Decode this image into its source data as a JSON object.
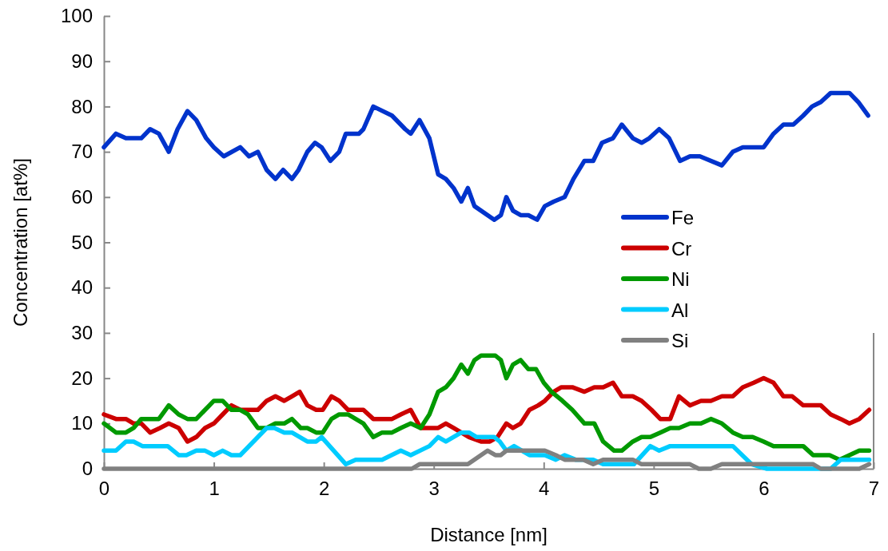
{
  "chart_data": {
    "type": "line",
    "xlabel": "Distance [nm]",
    "ylabel": "Concentration [at%]",
    "xlim": [
      0,
      7
    ],
    "xticks": [
      0,
      1,
      2,
      3,
      4,
      5,
      6,
      7
    ],
    "ylim": [
      0,
      100
    ],
    "yticks": [
      0,
      10,
      20,
      30,
      40,
      50,
      60,
      70,
      80,
      90,
      100
    ],
    "grid": false,
    "legend": "right",
    "marker": "none",
    "line_style": "solid",
    "series": [
      {
        "name": "Fe",
        "color": "#0033cc",
        "x": [
          0,
          0.11,
          0.2,
          0.34,
          0.42,
          0.5,
          0.59,
          0.67,
          0.76,
          0.84,
          0.93,
          1.0,
          1.09,
          1.24,
          1.32,
          1.4,
          1.48,
          1.56,
          1.63,
          1.71,
          1.77,
          1.85,
          1.92,
          1.98,
          2.06,
          2.14,
          2.2,
          2.32,
          2.36,
          2.45,
          2.62,
          2.74,
          2.79,
          2.87,
          2.96,
          3.04,
          3.11,
          3.18,
          3.25,
          3.31,
          3.37,
          3.55,
          3.61,
          3.66,
          3.72,
          3.79,
          3.86,
          3.94,
          4.01,
          4.09,
          4.19,
          4.27,
          4.37,
          4.45,
          4.53,
          4.63,
          4.71,
          4.81,
          4.89,
          4.96,
          5.05,
          5.14,
          5.24,
          5.33,
          5.42,
          5.62,
          5.72,
          5.81,
          6.0,
          6.09,
          6.18,
          6.27,
          6.36,
          6.44,
          6.52,
          6.61,
          6.78,
          6.86,
          6.95
        ],
        "values": [
          71,
          74,
          73,
          73,
          75,
          74,
          70,
          75,
          79,
          77,
          73,
          71,
          69,
          71,
          69,
          70,
          66,
          64,
          66,
          64,
          66,
          70,
          72,
          71,
          68,
          70,
          74,
          74,
          75,
          80,
          78,
          75,
          74,
          77,
          73,
          65,
          64,
          62,
          59,
          62,
          58,
          55,
          56,
          60,
          57,
          56,
          56,
          55,
          58,
          59,
          60,
          64,
          68,
          68,
          72,
          73,
          76,
          73,
          72,
          73,
          75,
          73,
          68,
          69,
          69,
          67,
          70,
          71,
          71,
          74,
          76,
          76,
          78,
          80,
          81,
          83,
          83,
          81,
          78
        ]
      },
      {
        "name": "Cr",
        "color": "#cc0000",
        "x": [
          0,
          0.11,
          0.2,
          0.27,
          0.34,
          0.42,
          0.51,
          0.59,
          0.68,
          0.76,
          0.84,
          0.92,
          1.0,
          1.08,
          1.16,
          1.24,
          1.4,
          1.48,
          1.56,
          1.64,
          1.71,
          1.78,
          1.85,
          1.93,
          1.99,
          2.07,
          2.14,
          2.22,
          2.36,
          2.45,
          2.62,
          2.7,
          2.79,
          2.88,
          3.04,
          3.11,
          3.18,
          3.25,
          3.32,
          3.43,
          3.51,
          3.58,
          3.66,
          3.72,
          3.79,
          3.87,
          3.95,
          4.01,
          4.09,
          4.16,
          4.26,
          4.37,
          4.46,
          4.54,
          4.63,
          4.71,
          4.81,
          4.89,
          4.98,
          5.06,
          5.15,
          5.23,
          5.33,
          5.43,
          5.52,
          5.62,
          5.72,
          5.81,
          5.91,
          6.0,
          6.09,
          6.18,
          6.26,
          6.36,
          6.52,
          6.61,
          6.7,
          6.78,
          6.87,
          6.96
        ],
        "values": [
          12,
          11,
          11,
          10,
          10,
          8,
          9,
          10,
          9,
          6,
          7,
          9,
          10,
          12,
          14,
          13,
          13,
          15,
          16,
          15,
          16,
          17,
          14,
          13,
          13,
          16,
          15,
          13,
          13,
          11,
          11,
          12,
          13,
          9,
          9,
          10,
          9,
          8,
          7,
          6,
          6,
          7,
          10,
          9,
          10,
          13,
          14,
          15,
          17,
          18,
          18,
          17,
          18,
          18,
          19,
          16,
          16,
          15,
          13,
          11,
          11,
          16,
          14,
          15,
          15,
          16,
          16,
          18,
          19,
          20,
          19,
          16,
          16,
          14,
          14,
          12,
          11,
          10,
          11,
          13
        ]
      },
      {
        "name": "Ni",
        "color": "#009900",
        "x": [
          0,
          0.11,
          0.2,
          0.27,
          0.34,
          0.5,
          0.59,
          0.68,
          0.76,
          0.84,
          0.92,
          1.0,
          1.08,
          1.16,
          1.24,
          1.31,
          1.4,
          1.48,
          1.56,
          1.64,
          1.71,
          1.79,
          1.85,
          1.93,
          1.99,
          2.07,
          2.14,
          2.22,
          2.36,
          2.45,
          2.53,
          2.62,
          2.7,
          2.79,
          2.88,
          2.96,
          3.04,
          3.11,
          3.18,
          3.25,
          3.31,
          3.37,
          3.43,
          3.56,
          3.61,
          3.66,
          3.72,
          3.79,
          3.86,
          3.93,
          4.0,
          4.07,
          4.17,
          4.26,
          4.37,
          4.46,
          4.54,
          4.64,
          4.71,
          4.81,
          4.89,
          4.97,
          5.06,
          5.15,
          5.23,
          5.33,
          5.43,
          5.52,
          5.62,
          5.72,
          5.81,
          5.9,
          6.0,
          6.09,
          6.36,
          6.45,
          6.6,
          6.69,
          6.78,
          6.87,
          6.96
        ],
        "values": [
          10,
          8,
          8,
          9,
          11,
          11,
          14,
          12,
          11,
          11,
          13,
          15,
          15,
          13,
          13,
          12,
          9,
          9,
          10,
          10,
          11,
          9,
          9,
          8,
          8,
          11,
          12,
          12,
          10,
          7,
          8,
          8,
          9,
          10,
          9,
          12,
          17,
          18,
          20,
          23,
          21,
          24,
          25,
          25,
          24,
          20,
          23,
          24,
          22,
          22,
          19,
          17,
          15,
          13,
          10,
          10,
          6,
          4,
          4,
          6,
          7,
          7,
          8,
          9,
          9,
          10,
          10,
          11,
          10,
          8,
          7,
          7,
          6,
          5,
          5,
          3,
          3,
          2,
          3,
          4,
          4
        ]
      },
      {
        "name": "Al",
        "color": "#00ccff",
        "x": [
          0,
          0.11,
          0.2,
          0.27,
          0.35,
          0.58,
          0.68,
          0.75,
          0.84,
          0.92,
          1.0,
          1.08,
          1.16,
          1.24,
          1.48,
          1.55,
          1.64,
          1.71,
          1.85,
          1.93,
          1.98,
          2.2,
          2.29,
          2.53,
          2.7,
          2.79,
          2.96,
          3.04,
          3.11,
          3.25,
          3.32,
          3.39,
          3.55,
          3.6,
          3.66,
          3.73,
          3.87,
          4.01,
          4.11,
          4.19,
          4.29,
          4.45,
          4.54,
          4.82,
          4.97,
          5.05,
          5.15,
          5.72,
          5.89,
          6.03,
          6.61,
          6.7,
          6.96
        ],
        "values": [
          4,
          4,
          6,
          6,
          5,
          5,
          3,
          3,
          4,
          4,
          3,
          4,
          3,
          3,
          9,
          9,
          8,
          8,
          6,
          6,
          7,
          1,
          2,
          2,
          4,
          3,
          5,
          7,
          6,
          8,
          8,
          7,
          7,
          6,
          4,
          5,
          3,
          3,
          2,
          3,
          2,
          2,
          1,
          1,
          5,
          4,
          5,
          5,
          1,
          0,
          0,
          2,
          2
        ]
      },
      {
        "name": "Si",
        "color": "#808080",
        "x": [
          0,
          2.8,
          2.87,
          3.31,
          3.49,
          3.56,
          3.61,
          3.66,
          4.01,
          4.11,
          4.19,
          4.36,
          4.45,
          4.54,
          4.81,
          4.89,
          5.33,
          5.41,
          5.52,
          5.62,
          6.45,
          6.52,
          6.87,
          6.96
        ],
        "values": [
          0,
          0,
          1,
          1,
          4,
          3,
          3,
          4,
          4,
          3,
          2,
          2,
          1,
          2,
          2,
          1,
          1,
          0,
          0,
          1,
          1,
          0,
          0,
          1
        ]
      }
    ]
  }
}
